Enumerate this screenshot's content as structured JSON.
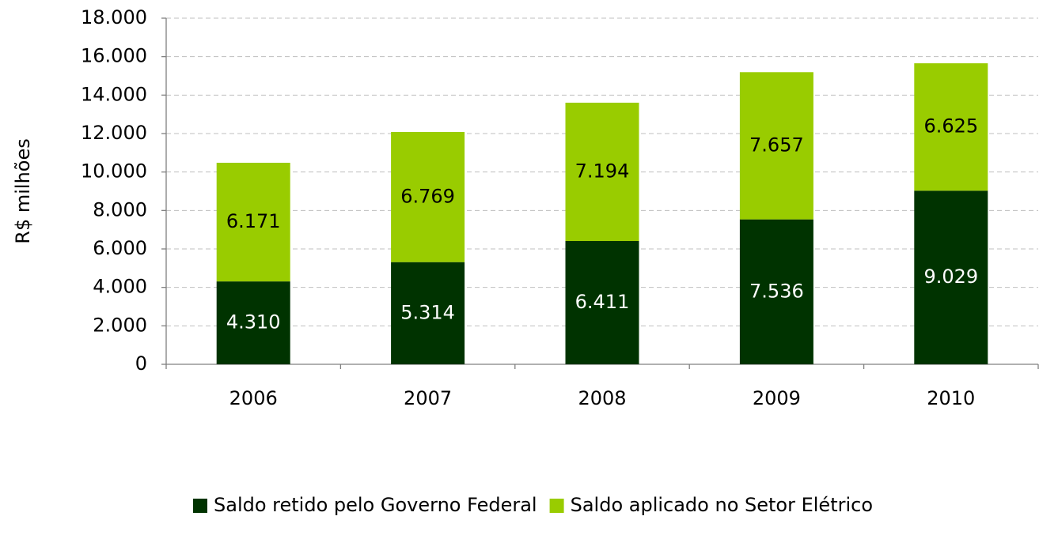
{
  "chart_data": {
    "type": "stacked_bar",
    "categories": [
      "2006",
      "2007",
      "2008",
      "2009",
      "2010"
    ],
    "y_label": "R$ milhões",
    "series": [
      {
        "name": "Saldo retido pelo Governo Federal",
        "color": "#003300",
        "label_color": "#ffffff",
        "values": [
          4310,
          5314,
          6411,
          7536,
          9029
        ],
        "value_labels": [
          "4.310",
          "5.314",
          "6.411",
          "7.536",
          "9.029"
        ]
      },
      {
        "name": "Saldo aplicado no Setor Elétrico",
        "color": "#99cc00",
        "label_color": "#000000",
        "values": [
          6171,
          6769,
          7194,
          7657,
          6625
        ],
        "value_labels": [
          "6.171",
          "6.769",
          "7.194",
          "7.657",
          "6.625"
        ]
      }
    ],
    "ylim": [
      0,
      18000
    ],
    "yticks": [
      0,
      {
        "value": 2000,
        "label": "2.000"
      },
      {
        "value": 4000,
        "label": "4.000"
      },
      {
        "value": 6000,
        "label": "6.000"
      },
      {
        "value": 8000,
        "label": "8.000"
      },
      {
        "value": 10000,
        "label": "10.000"
      },
      {
        "value": 12000,
        "label": "12.000"
      },
      {
        "value": 14000,
        "label": "14.000"
      },
      {
        "value": 16000,
        "label": "16.000"
      },
      {
        "value": 18000,
        "label": "18.000"
      }
    ],
    "grid": true,
    "legend": "bottom"
  }
}
